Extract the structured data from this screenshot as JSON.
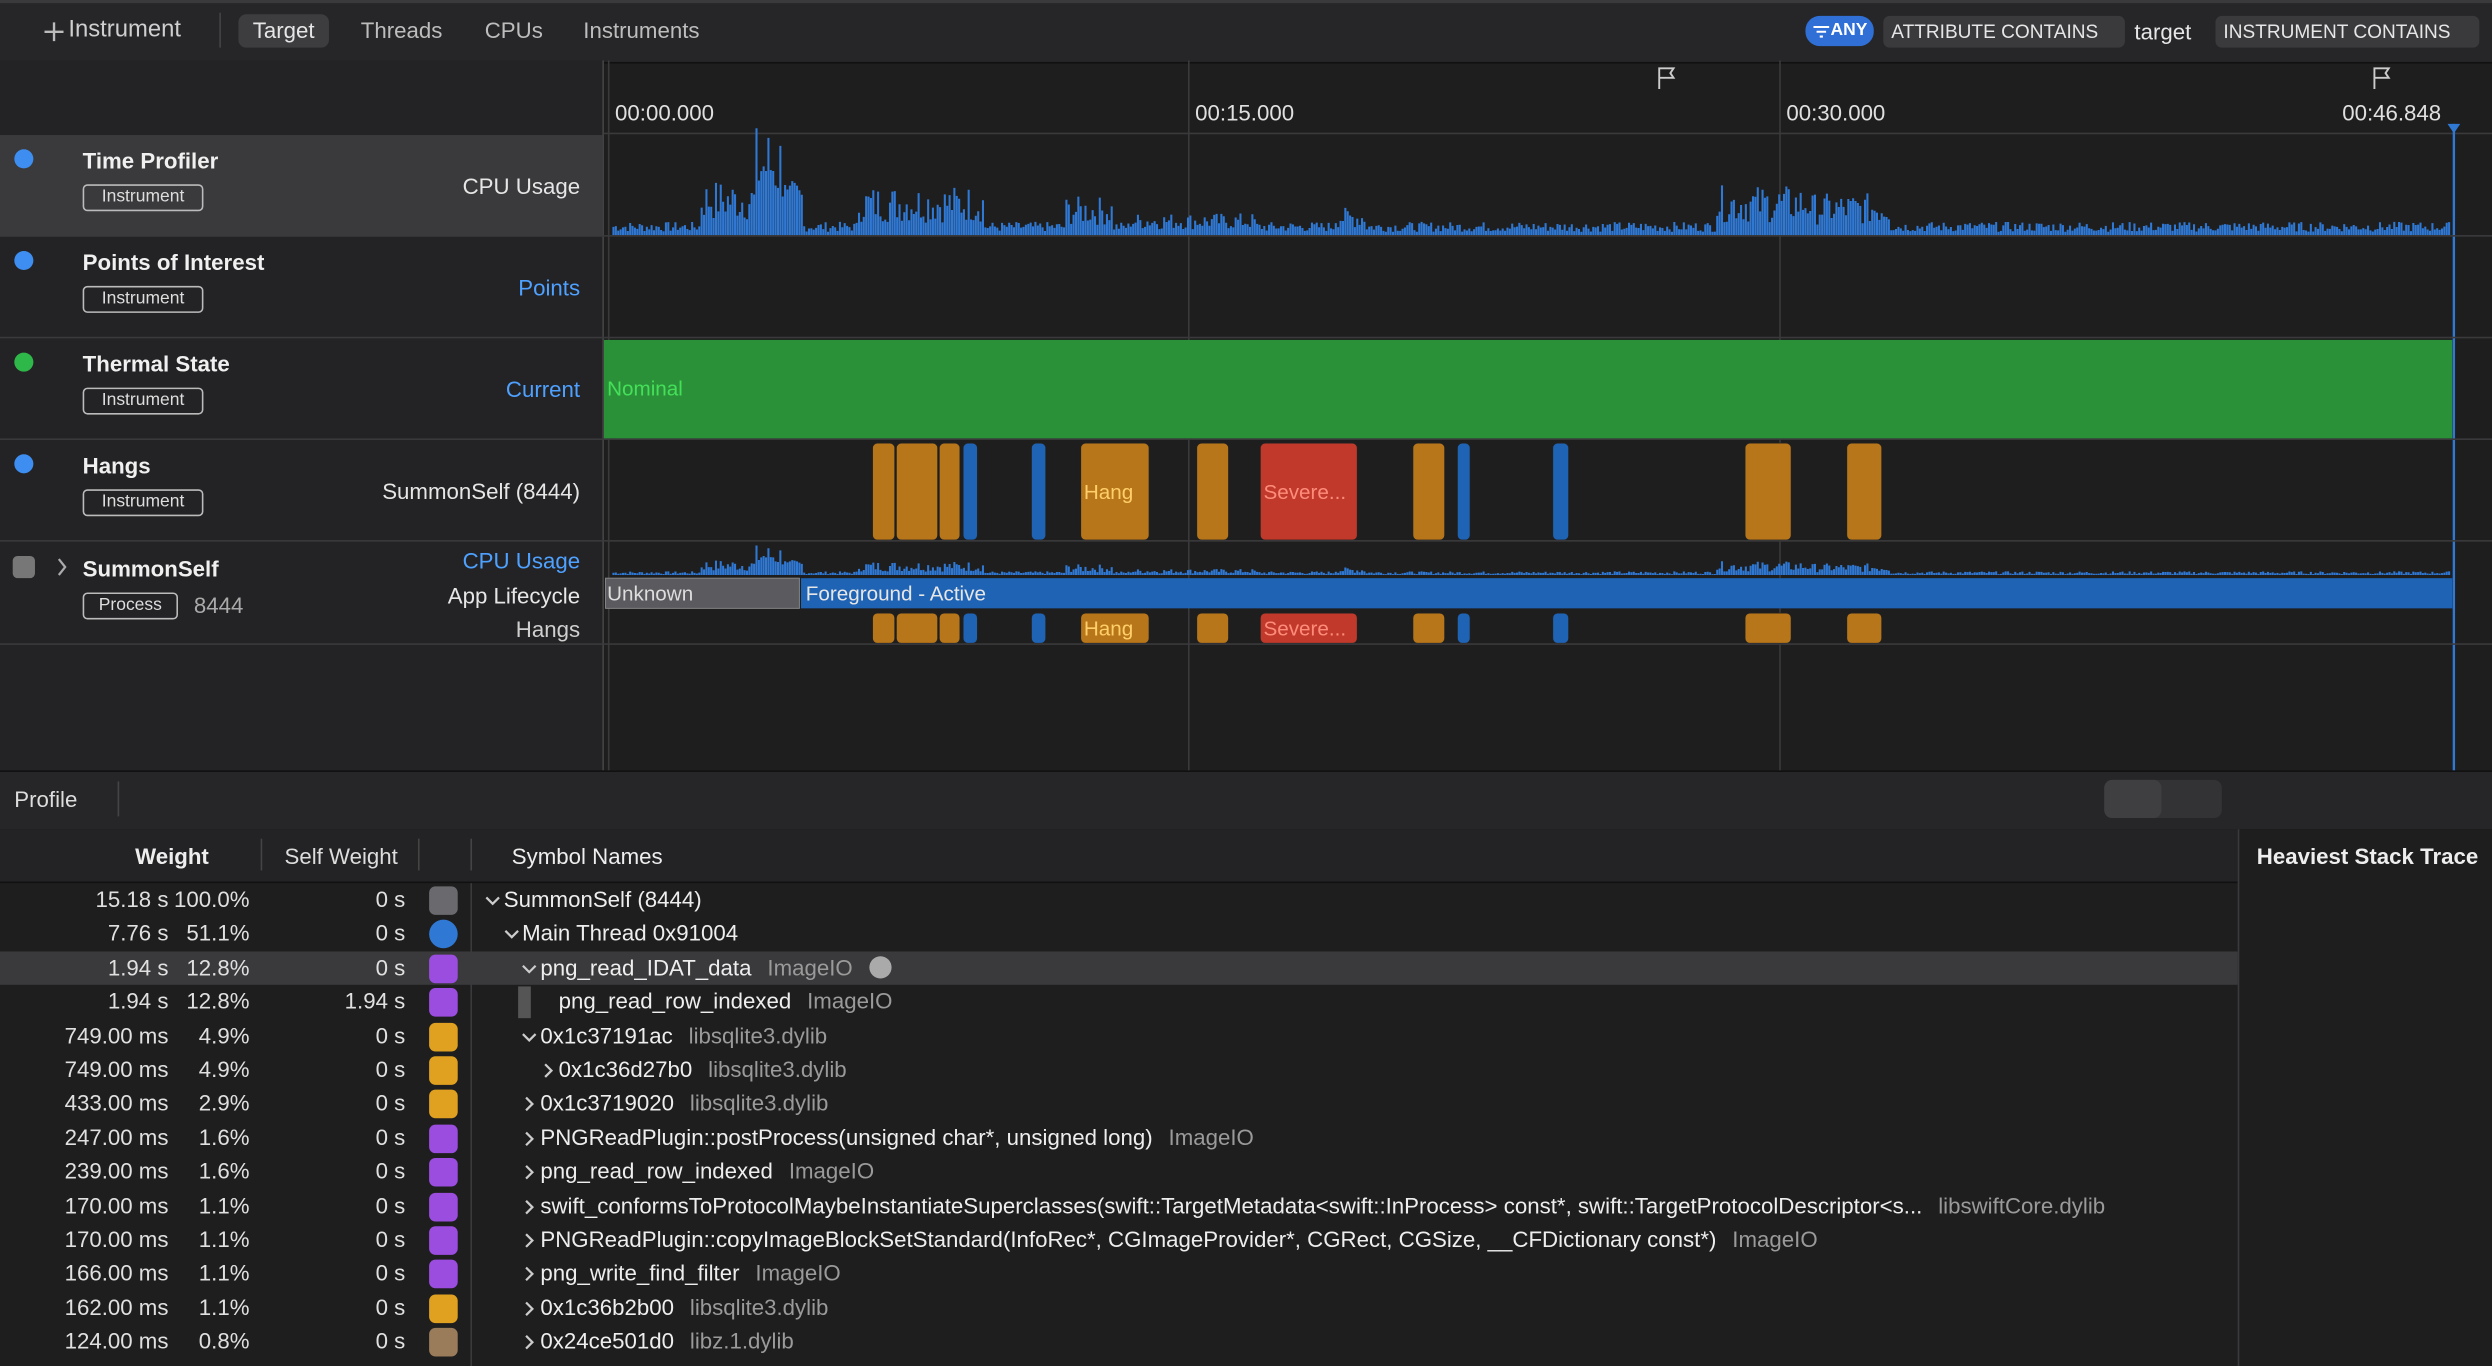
{
  "toolbar": {
    "add_button": "Instrument",
    "tabs": [
      "Target",
      "Threads",
      "CPUs",
      "Instruments"
    ],
    "filter": {
      "any": "ANY",
      "attribute": "ATTRIBUTE CONTAINS",
      "attribute_value": "target",
      "instrument": "INSTRUMENT CONTAINS"
    }
  },
  "timeline": {
    "ticks": [
      "00:00.000",
      "00:15.000",
      "00:30.000",
      "00:46.848"
    ]
  },
  "tracks": [
    {
      "name": "Time Profiler",
      "badge": "Instrument",
      "label": "CPU Usage"
    },
    {
      "name": "Points of Interest",
      "badge": "Instrument",
      "label": "Points"
    },
    {
      "name": "Thermal State",
      "badge": "Instrument",
      "label": "Current",
      "state": "Nominal"
    },
    {
      "name": "Hangs",
      "badge": "Instrument",
      "label": "SummonSelf (8444)",
      "hang_labels": [
        "Hang",
        "Severe..."
      ]
    }
  ],
  "process": {
    "name": "SummonSelf",
    "badge": "Process",
    "pid": "8444",
    "labels": [
      "CPU Usage",
      "App Lifecycle",
      "Hangs"
    ],
    "lifecycle": [
      "Unknown",
      "Foreground - Active"
    ],
    "hang_labels": [
      "Hang",
      "Severe..."
    ]
  },
  "detail": {
    "mode": "Profile",
    "columns": [
      "Weight",
      "Self Weight",
      "Symbol Names"
    ],
    "side_title": "Heaviest Stack Trace",
    "rows": [
      {
        "weight": "15.18 s",
        "percent": "100.0%",
        "self_weight": "0 s",
        "symbol": "SummonSelf (8444)",
        "library": null
      },
      {
        "weight": "7.76 s",
        "percent": "51.1%",
        "self_weight": "0 s",
        "symbol": "Main Thread 0x91004",
        "library": null
      },
      {
        "weight": "1.94 s",
        "percent": "12.8%",
        "self_weight": "0 s",
        "symbol": "png_read_IDAT_data",
        "library": "ImageIO"
      },
      {
        "weight": "1.94 s",
        "percent": "12.8%",
        "self_weight": "1.94 s",
        "symbol": "png_read_row_indexed",
        "library": "ImageIO"
      },
      {
        "weight": "749.00 ms",
        "percent": "4.9%",
        "self_weight": "0 s",
        "symbol": "0x1c37191ac",
        "library": "libsqlite3.dylib"
      },
      {
        "weight": "749.00 ms",
        "percent": "4.9%",
        "self_weight": "0 s",
        "symbol": "0x1c36d27b0",
        "library": "libsqlite3.dylib"
      },
      {
        "weight": "433.00 ms",
        "percent": "2.9%",
        "self_weight": "0 s",
        "symbol": "0x1c3719020",
        "library": "libsqlite3.dylib"
      },
      {
        "weight": "247.00 ms",
        "percent": "1.6%",
        "self_weight": "0 s",
        "symbol": "PNGReadPlugin::postProcess(unsigned char*, unsigned long)",
        "library": "ImageIO"
      },
      {
        "weight": "239.00 ms",
        "percent": "1.6%",
        "self_weight": "0 s",
        "symbol": "png_read_row_indexed",
        "library": "ImageIO"
      },
      {
        "weight": "170.00 ms",
        "percent": "1.1%",
        "self_weight": "0 s",
        "symbol": "swift_conformsToProtocolMaybeInstantiateSuperclasses(swift::TargetMetadata<swift::InProcess> const*, swift::TargetProtocolDescriptor<s...",
        "library": "libswiftCore.dylib"
      },
      {
        "weight": "170.00 ms",
        "percent": "1.1%",
        "self_weight": "0 s",
        "symbol": "PNGReadPlugin::copyImageBlockSetStandard(InfoRec*, CGImageProvider*, CGRect, CGSize, __CFDictionary const*)",
        "library": "ImageIO"
      },
      {
        "weight": "166.00 ms",
        "percent": "1.1%",
        "self_weight": "0 s",
        "symbol": "png_write_find_filter",
        "library": "ImageIO"
      },
      {
        "weight": "162.00 ms",
        "percent": "1.1%",
        "self_weight": "0 s",
        "symbol": "0x1c36b2b00",
        "library": "libsqlite3.dylib"
      },
      {
        "weight": "124.00 ms",
        "percent": "0.8%",
        "self_weight": "0 s",
        "symbol": "0x24ce501d0",
        "library": "libz.1.dylib"
      }
    ]
  }
}
